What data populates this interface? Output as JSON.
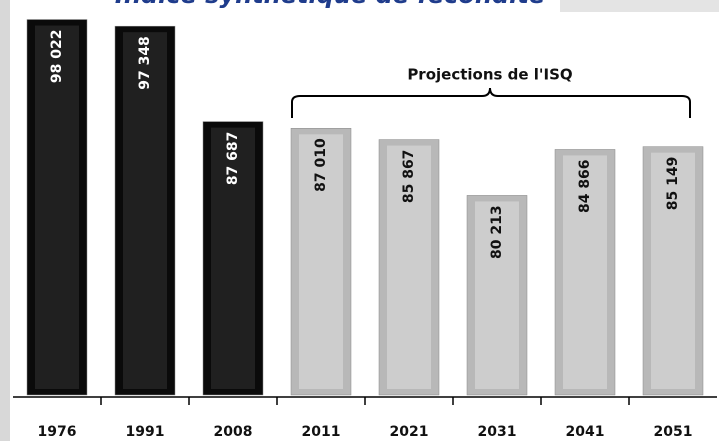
{
  "chart_data": {
    "type": "bar",
    "title": "Indice synthétique de fécondité",
    "annotation": "Projections de l'ISQ",
    "categories": [
      "1976",
      "1991",
      "2008",
      "2011",
      "2021",
      "2031",
      "2041",
      "2051"
    ],
    "values": [
      98022,
      97348,
      87687,
      87010,
      85867,
      80213,
      84866,
      85149
    ],
    "value_labels": [
      "98 022",
      "97 348",
      "87 687",
      "87 010",
      "85 867",
      "80 213",
      "84 866",
      "85 149"
    ],
    "colors": [
      "#0a0a0a",
      "#0a0a0a",
      "#0a0a0a",
      "#b8b8b8",
      "#b8b8b8",
      "#b8b8b8",
      "#b8b8b8",
      "#b8b8b8"
    ],
    "ylim": [
      60000,
      100000
    ]
  }
}
